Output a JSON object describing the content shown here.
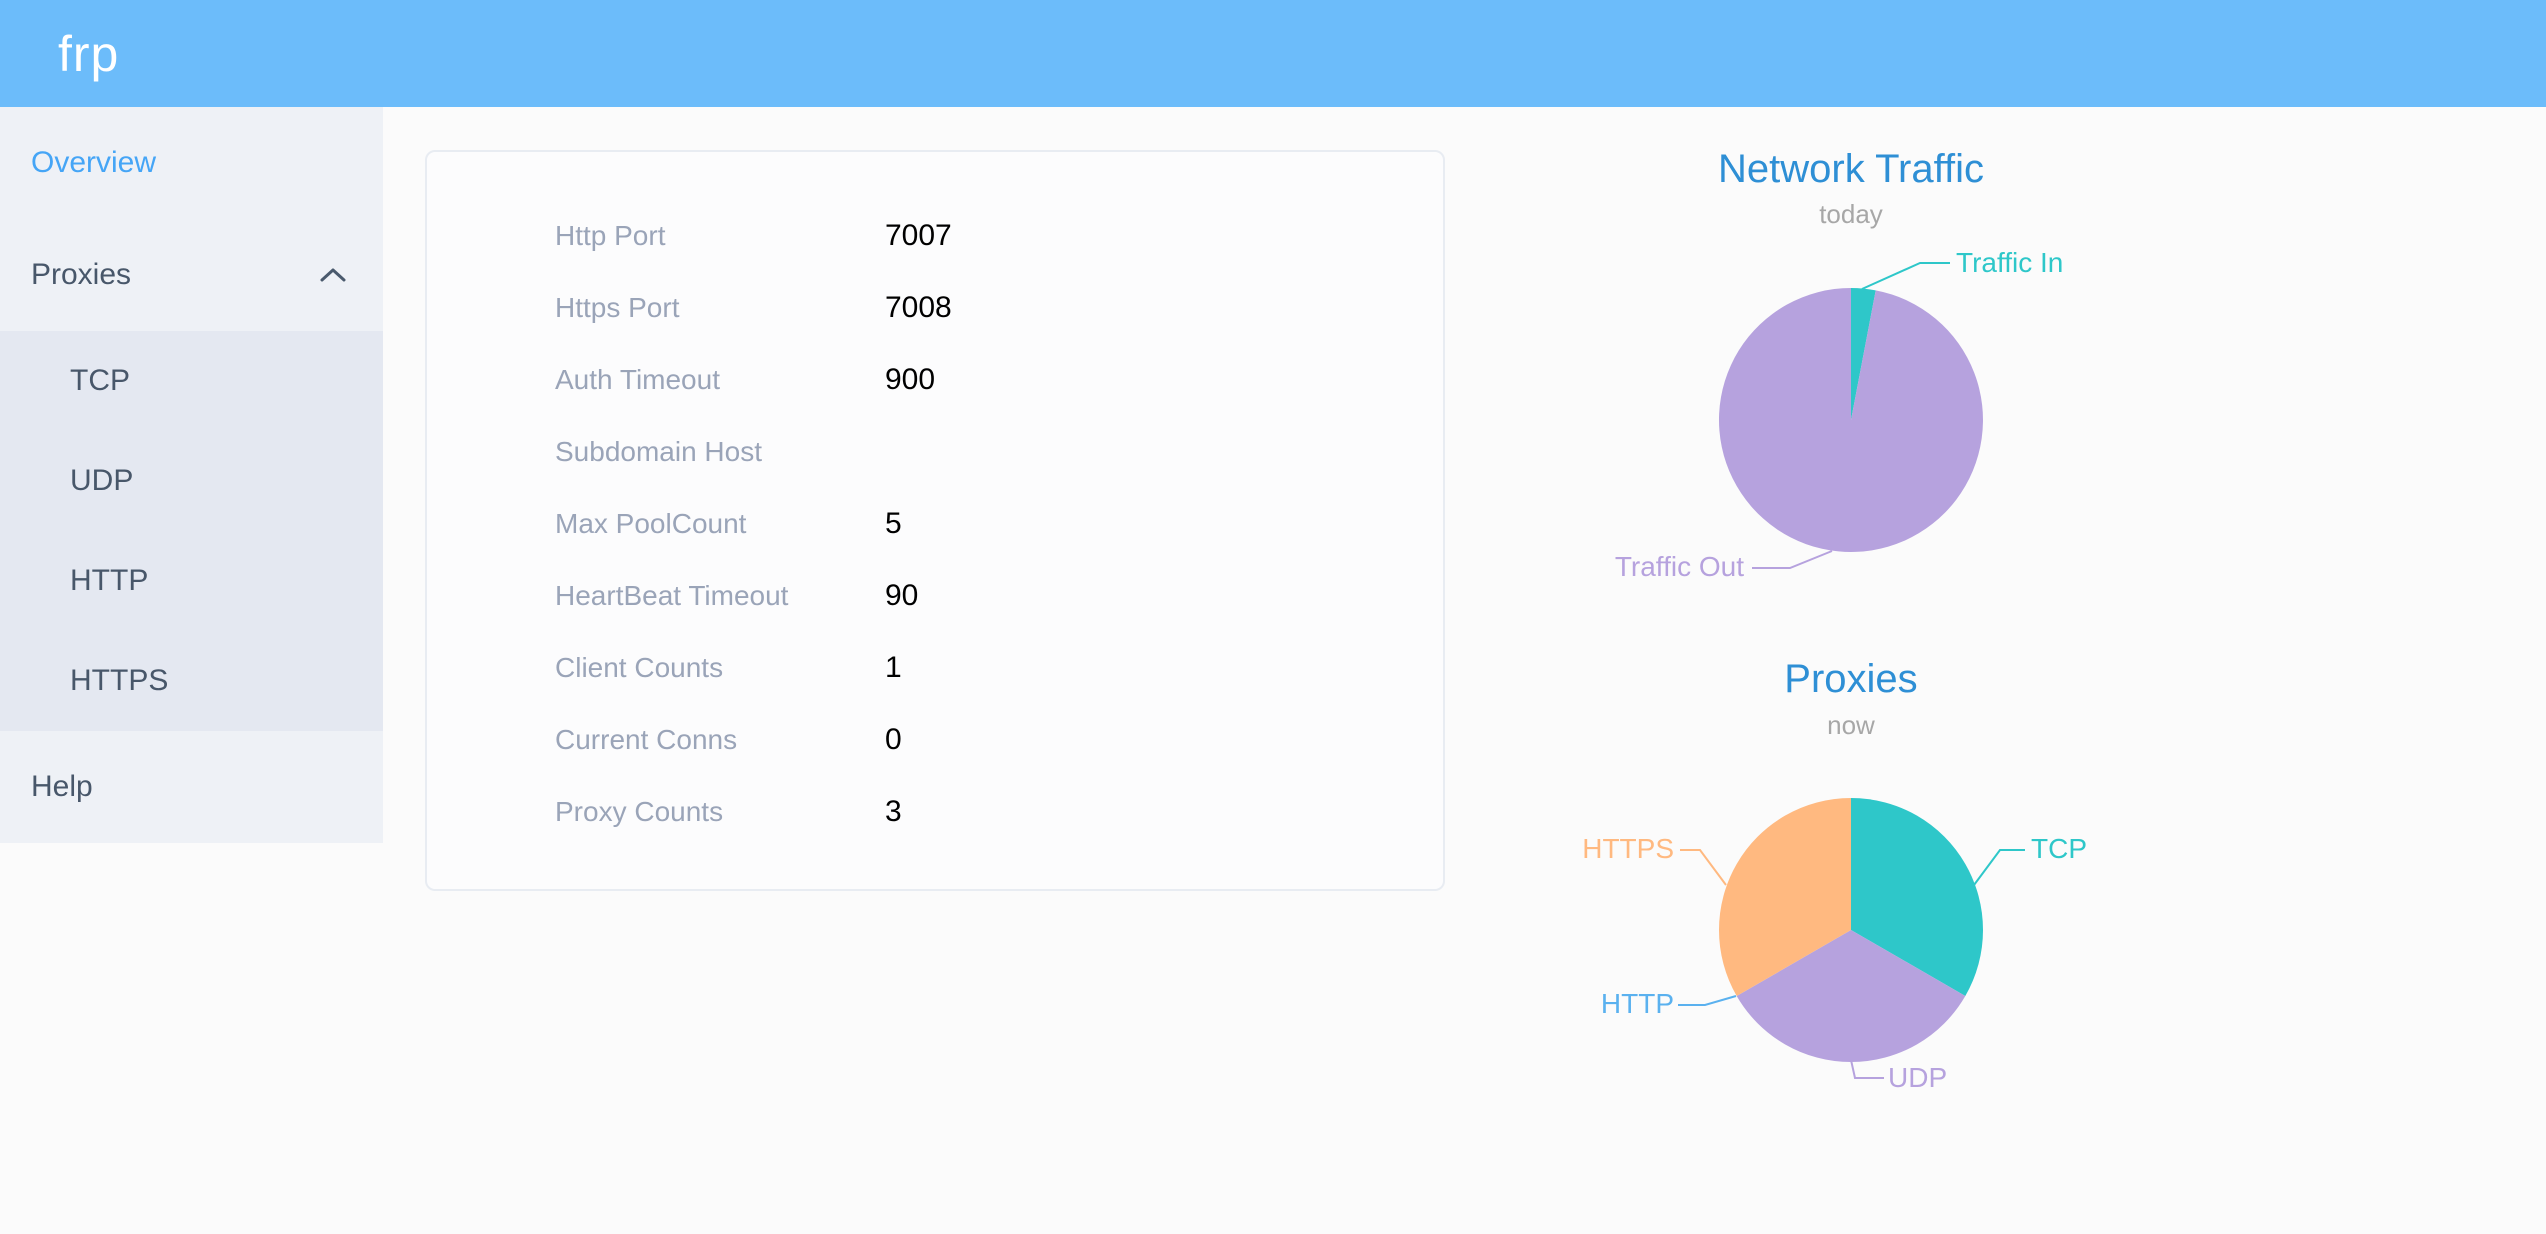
{
  "app": {
    "logo": "frp"
  },
  "sidebar": {
    "overview": {
      "label": "Overview"
    },
    "proxies": {
      "label": "Proxies"
    },
    "proxies_children": [
      {
        "label": "TCP"
      },
      {
        "label": "UDP"
      },
      {
        "label": "HTTP"
      },
      {
        "label": "HTTPS"
      }
    ],
    "help": {
      "label": "Help"
    }
  },
  "overview_card": {
    "rows": [
      {
        "label": "Http Port",
        "value": "7007"
      },
      {
        "label": "Https Port",
        "value": "7008"
      },
      {
        "label": "Auth Timeout",
        "value": "900"
      },
      {
        "label": "Subdomain Host",
        "value": ""
      },
      {
        "label": "Max PoolCount",
        "value": "5"
      },
      {
        "label": "HeartBeat Timeout",
        "value": "90"
      },
      {
        "label": "Client Counts",
        "value": "1"
      },
      {
        "label": "Current Conns",
        "value": "0"
      },
      {
        "label": "Proxy Counts",
        "value": "3"
      }
    ]
  },
  "chart_data": [
    {
      "type": "pie",
      "title": "Network Traffic",
      "subtitle": "today",
      "legend_position": "outside-labels",
      "start_angle": "top",
      "direction": "clockwise",
      "slices": [
        {
          "name": "Traffic In",
          "value": 3,
          "unit": "percent-estimate",
          "color": "#2ec7c9"
        },
        {
          "name": "Traffic Out",
          "value": 97,
          "unit": "percent-estimate",
          "color": "#b6a2de"
        }
      ]
    },
    {
      "type": "pie",
      "title": "Proxies",
      "subtitle": "now",
      "legend_position": "outside-labels",
      "start_angle": "top",
      "direction": "clockwise",
      "slices": [
        {
          "name": "TCP",
          "value": 1,
          "color": "#2ec7c9"
        },
        {
          "name": "UDP",
          "value": 1,
          "color": "#b6a2de"
        },
        {
          "name": "HTTP",
          "value": 0,
          "color": "#5ab1ef"
        },
        {
          "name": "HTTPS",
          "value": 1,
          "color": "#ffb980"
        }
      ]
    }
  ],
  "colors": {
    "header_bg": "#6cbcfa",
    "sidebar_bg": "#eef1f6",
    "submenu_bg": "#e4e8f1",
    "menu_text": "#48576a",
    "menu_active": "#45a5f6",
    "chart_title": "#2e8fd5",
    "chart_subtitle": "#a7a7a7",
    "card_label": "#9aa4b8",
    "teal": "#2ec7c9",
    "purple": "#b6a2de",
    "orange": "#ffb980",
    "blue": "#5ab1ef"
  }
}
